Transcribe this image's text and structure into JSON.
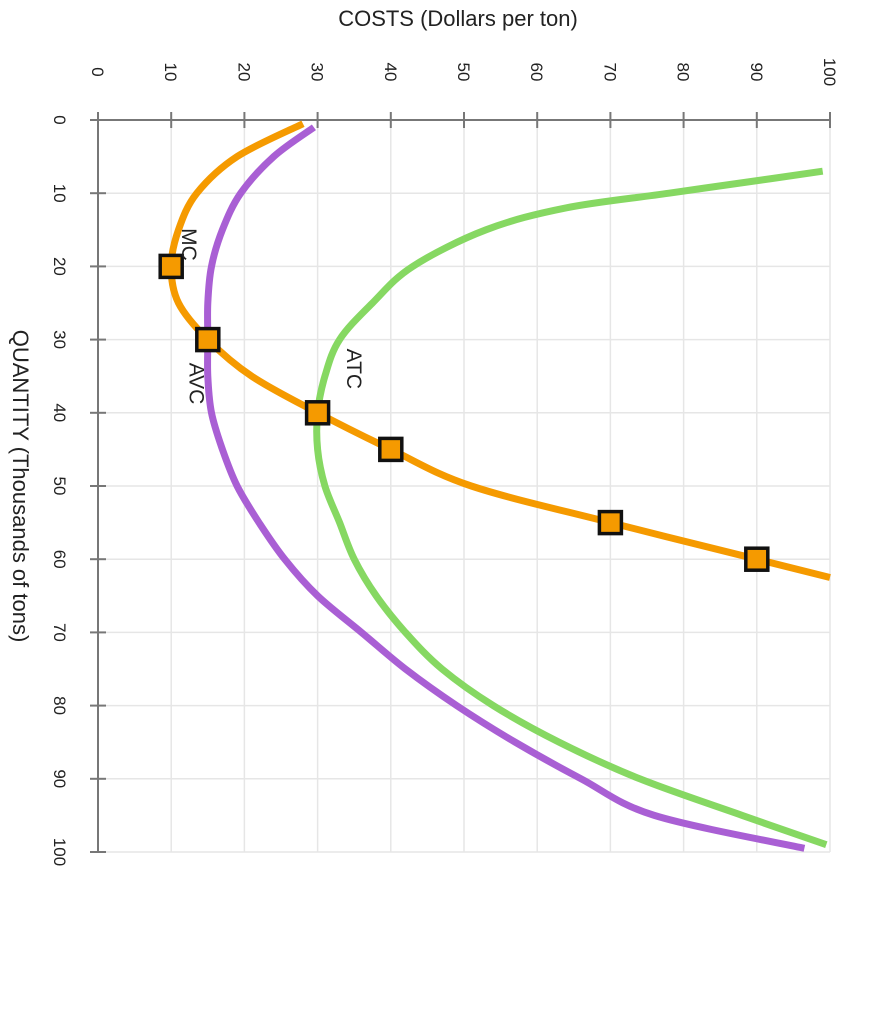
{
  "chart_data": {
    "type": "line",
    "orientation": "rotated-90-clockwise",
    "xlabel": "QUANTITY (Thousands of tons)",
    "ylabel": "COSTS (Dollars per ton)",
    "xlim": [
      0,
      100
    ],
    "ylim": [
      0,
      100
    ],
    "xticks": [
      0,
      10,
      20,
      30,
      40,
      50,
      60,
      70,
      80,
      90,
      100
    ],
    "yticks": [
      0,
      10,
      20,
      30,
      40,
      50,
      60,
      70,
      80,
      90,
      100
    ],
    "grid": true,
    "series": [
      {
        "name": "MC",
        "color": "#f59a00",
        "points": [
          [
            0.5,
            28
          ],
          [
            5,
            19
          ],
          [
            10,
            13.5
          ],
          [
            15,
            11
          ],
          [
            20,
            10
          ],
          [
            25,
            11
          ],
          [
            30,
            15
          ],
          [
            35,
            21
          ],
          [
            40,
            30
          ],
          [
            45,
            40
          ],
          [
            50,
            51
          ],
          [
            55,
            70
          ],
          [
            60,
            90
          ],
          [
            62.5,
            100
          ]
        ],
        "markers": [
          [
            20,
            10
          ],
          [
            30,
            15
          ],
          [
            40,
            30
          ],
          [
            45,
            40
          ],
          [
            55,
            70
          ],
          [
            60,
            90
          ]
        ]
      },
      {
        "name": "AVC",
        "color": "#a95fd4",
        "points": [
          [
            1,
            29.5
          ],
          [
            5,
            24
          ],
          [
            10,
            19.5
          ],
          [
            15,
            17
          ],
          [
            20,
            15.5
          ],
          [
            25,
            15
          ],
          [
            30,
            15
          ],
          [
            35,
            15
          ],
          [
            40,
            15.5
          ],
          [
            45,
            17
          ],
          [
            50,
            19
          ],
          [
            55,
            22
          ],
          [
            60,
            25.5
          ],
          [
            65,
            30
          ],
          [
            70,
            36
          ],
          [
            75,
            42
          ],
          [
            80,
            49
          ],
          [
            85,
            57
          ],
          [
            90,
            66
          ],
          [
            95,
            76
          ],
          [
            99.5,
            96.5
          ]
        ]
      },
      {
        "name": "ATC",
        "color": "#86d862",
        "points": [
          [
            7,
            99
          ],
          [
            8,
            92
          ],
          [
            10,
            78
          ],
          [
            12,
            64
          ],
          [
            15,
            53
          ],
          [
            20,
            43
          ],
          [
            25,
            37.5
          ],
          [
            30,
            33
          ],
          [
            35,
            31
          ],
          [
            40,
            30
          ],
          [
            45,
            30
          ],
          [
            50,
            31
          ],
          [
            55,
            33
          ],
          [
            60,
            35
          ],
          [
            65,
            38
          ],
          [
            70,
            42
          ],
          [
            75,
            47
          ],
          [
            80,
            54
          ],
          [
            85,
            63
          ],
          [
            90,
            74
          ],
          [
            95,
            88
          ],
          [
            99,
            99.5
          ]
        ]
      }
    ]
  }
}
